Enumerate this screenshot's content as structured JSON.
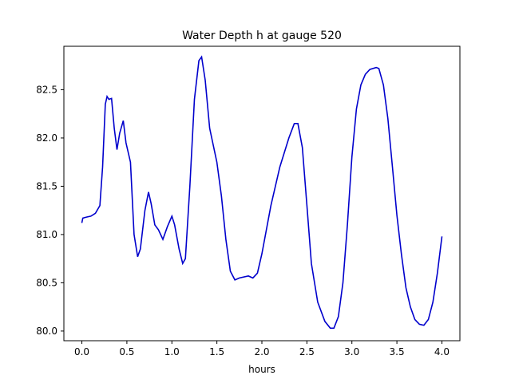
{
  "chart_data": {
    "type": "line",
    "title": "Water Depth h at gauge 520",
    "xlabel": "hours",
    "ylabel": "",
    "xlim": [
      -0.2,
      4.2
    ],
    "ylim": [
      79.9,
      82.95
    ],
    "x_ticks": [
      0.0,
      0.5,
      1.0,
      1.5,
      2.0,
      2.5,
      3.0,
      3.5,
      4.0
    ],
    "x_tick_labels": [
      "0.0",
      "0.5",
      "1.0",
      "1.5",
      "2.0",
      "2.5",
      "3.0",
      "3.5",
      "4.0"
    ],
    "y_ticks": [
      80.0,
      80.5,
      81.0,
      81.5,
      82.0,
      82.5
    ],
    "y_tick_labels": [
      "80.0",
      "80.5",
      "81.0",
      "81.5",
      "82.0",
      "82.5"
    ],
    "grid": false,
    "series": [
      {
        "color": "#0000cc",
        "points": [
          [
            0.0,
            81.12
          ],
          [
            0.01,
            81.17
          ],
          [
            0.05,
            81.18
          ],
          [
            0.1,
            81.19
          ],
          [
            0.15,
            81.22
          ],
          [
            0.2,
            81.3
          ],
          [
            0.23,
            81.7
          ],
          [
            0.26,
            82.35
          ],
          [
            0.28,
            82.43
          ],
          [
            0.3,
            82.4
          ],
          [
            0.33,
            82.41
          ],
          [
            0.36,
            82.1
          ],
          [
            0.39,
            81.88
          ],
          [
            0.42,
            82.05
          ],
          [
            0.46,
            82.18
          ],
          [
            0.49,
            81.95
          ],
          [
            0.54,
            81.75
          ],
          [
            0.58,
            81.0
          ],
          [
            0.62,
            80.77
          ],
          [
            0.65,
            80.85
          ],
          [
            0.7,
            81.25
          ],
          [
            0.74,
            81.44
          ],
          [
            0.77,
            81.32
          ],
          [
            0.81,
            81.1
          ],
          [
            0.85,
            81.05
          ],
          [
            0.9,
            80.95
          ],
          [
            0.95,
            81.08
          ],
          [
            1.0,
            81.19
          ],
          [
            1.03,
            81.1
          ],
          [
            1.08,
            80.85
          ],
          [
            1.12,
            80.7
          ],
          [
            1.15,
            80.75
          ],
          [
            1.2,
            81.5
          ],
          [
            1.25,
            82.4
          ],
          [
            1.3,
            82.8
          ],
          [
            1.33,
            82.84
          ],
          [
            1.37,
            82.6
          ],
          [
            1.42,
            82.1
          ],
          [
            1.5,
            81.75
          ],
          [
            1.55,
            81.4
          ],
          [
            1.6,
            80.95
          ],
          [
            1.65,
            80.62
          ],
          [
            1.7,
            80.53
          ],
          [
            1.75,
            80.55
          ],
          [
            1.85,
            80.57
          ],
          [
            1.9,
            80.55
          ],
          [
            1.95,
            80.6
          ],
          [
            2.0,
            80.8
          ],
          [
            2.1,
            81.3
          ],
          [
            2.2,
            81.7
          ],
          [
            2.3,
            82.0
          ],
          [
            2.36,
            82.15
          ],
          [
            2.4,
            82.15
          ],
          [
            2.45,
            81.9
          ],
          [
            2.5,
            81.3
          ],
          [
            2.55,
            80.7
          ],
          [
            2.62,
            80.3
          ],
          [
            2.7,
            80.1
          ],
          [
            2.76,
            80.03
          ],
          [
            2.8,
            80.03
          ],
          [
            2.85,
            80.15
          ],
          [
            2.9,
            80.5
          ],
          [
            2.95,
            81.1
          ],
          [
            3.0,
            81.8
          ],
          [
            3.05,
            82.3
          ],
          [
            3.1,
            82.55
          ],
          [
            3.15,
            82.66
          ],
          [
            3.2,
            82.71
          ],
          [
            3.27,
            82.73
          ],
          [
            3.3,
            82.72
          ],
          [
            3.35,
            82.55
          ],
          [
            3.4,
            82.2
          ],
          [
            3.45,
            81.7
          ],
          [
            3.5,
            81.2
          ],
          [
            3.55,
            80.8
          ],
          [
            3.6,
            80.45
          ],
          [
            3.65,
            80.25
          ],
          [
            3.7,
            80.12
          ],
          [
            3.75,
            80.07
          ],
          [
            3.8,
            80.06
          ],
          [
            3.85,
            80.12
          ],
          [
            3.9,
            80.3
          ],
          [
            3.95,
            80.6
          ],
          [
            4.0,
            80.98
          ]
        ]
      }
    ]
  }
}
